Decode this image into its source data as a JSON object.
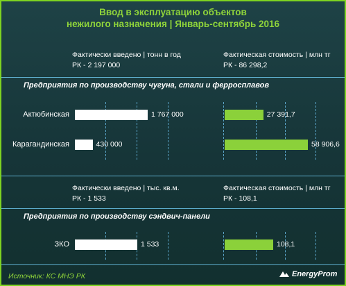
{
  "title_line1": "Ввод в эксплуатацию объектов",
  "title_line2": "нежилого назначения | Январь-сентябрь 2016",
  "block1": {
    "left_header": "Фактически введено | тонн в год",
    "left_total": "РК - 2 197 000",
    "right_header": "Фактическая стоимость | млн тг",
    "right_total": "РК - 86 298,2",
    "section": "Предприятия  по производству чугуна,  стали и ферросплавов"
  },
  "block2": {
    "left_header": "Фактически введено | тыс. кв.м.",
    "left_total": "РК - 1 533",
    "right_header": "Фактическая стоимость | млн тг",
    "right_total": "РК - 108,1",
    "section": "Предприятия  по производству сэндвич-панели"
  },
  "source": "Источник: КС МНЭ РК",
  "logo_text": "EnergyProm",
  "colors": {
    "title": "#8fd43a",
    "left_bar": "#ffffff",
    "right_bar": "#8bd13a",
    "border": "#7ed321"
  },
  "chart_data": [
    {
      "type": "bar",
      "orientation": "horizontal",
      "categories": [
        "Актюбинская",
        "Карагандинская"
      ],
      "series": [
        {
          "name": "Фактически введено | тонн в год",
          "values": [
            1767000,
            430000
          ],
          "labels": [
            "1 767 000",
            "430 000"
          ]
        },
        {
          "name": "Фактическая стоимость | млн тг",
          "values": [
            27391.7,
            58906.6
          ],
          "labels": [
            "27 391,7",
            "58 906,6"
          ]
        }
      ]
    },
    {
      "type": "bar",
      "orientation": "horizontal",
      "categories": [
        "ЗКО"
      ],
      "series": [
        {
          "name": "Фактически введено | тыс. кв.м.",
          "values": [
            1533
          ],
          "labels": [
            "1 533"
          ]
        },
        {
          "name": "Фактическая стоимость | млн тг",
          "values": [
            108.1
          ],
          "labels": [
            "108,1"
          ]
        }
      ]
    }
  ]
}
